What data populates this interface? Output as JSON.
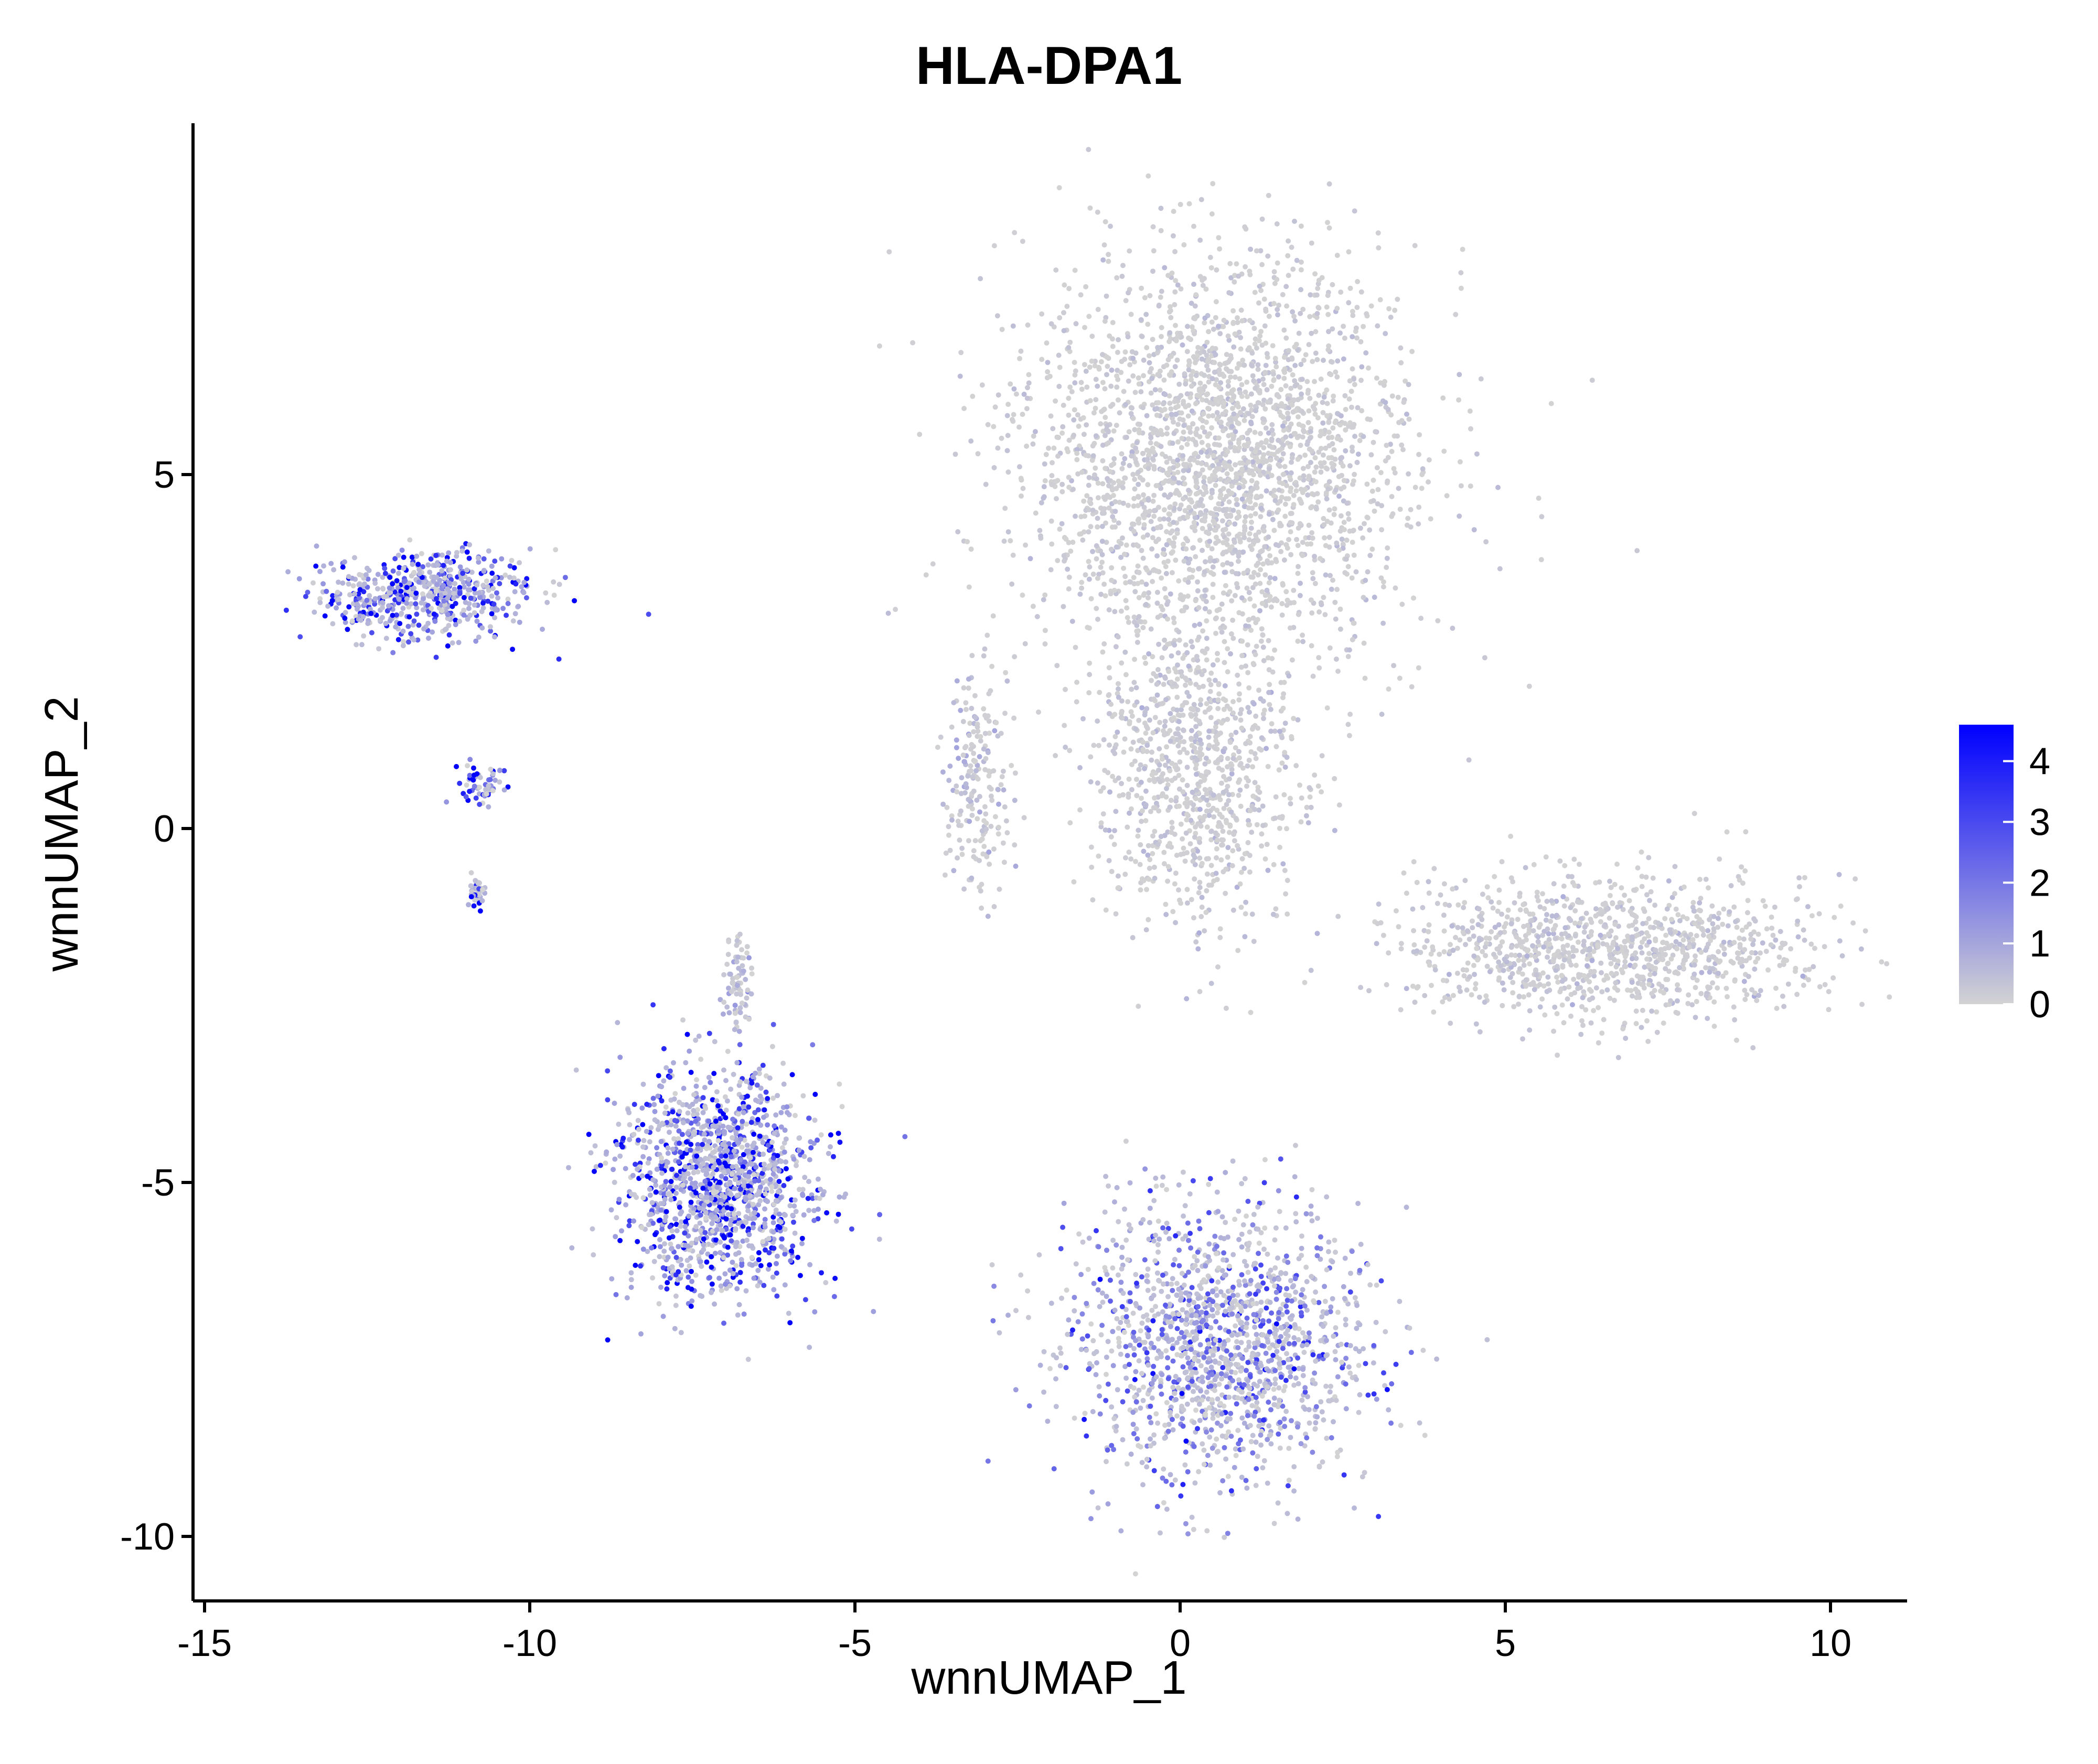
{
  "chart_data": {
    "type": "scatter",
    "title": "HLA-DPA1",
    "xlabel": "wnnUMAP_1",
    "ylabel": "wnnUMAP_2",
    "xlim": [
      -15.3,
      11.2
    ],
    "ylim": [
      -11,
      9.9
    ],
    "xticks": [
      -15,
      -10,
      -5,
      0,
      5,
      10
    ],
    "yticks": [
      5,
      0,
      -5,
      -10
    ],
    "xtick_labels": [
      "-15",
      "-10",
      "-5",
      "0",
      "5",
      "10"
    ],
    "ytick_labels": [
      "5",
      "0",
      "-5",
      "-10"
    ],
    "grid": false,
    "legend": {
      "placement": "right",
      "ticks": [
        4,
        3,
        2,
        1,
        0
      ],
      "tick_labels": [
        "4",
        "3",
        "2",
        "1",
        "0"
      ],
      "range": [
        0,
        4.6
      ]
    },
    "colors": {
      "low": "#d3d3d3",
      "high": "#0000ff"
    },
    "clusters": [
      {
        "label": "upper central large cluster",
        "center": [
          0.6,
          5.2
        ],
        "spread": [
          3.0,
          2.8
        ],
        "expression": 0.25
      },
      {
        "label": "central stem",
        "center": [
          0.2,
          0.8
        ],
        "spread": [
          1.6,
          2.2
        ],
        "expression": 0.3
      },
      {
        "label": "left arm of central cluster",
        "center": [
          -3.1,
          0.6
        ],
        "spread": [
          0.5,
          1.6
        ],
        "expression": 0.5
      },
      {
        "label": "right elongated arm",
        "center": [
          6.6,
          -1.7
        ],
        "spread": [
          3.0,
          1.0
        ],
        "expression": 0.3
      },
      {
        "label": "lower central cluster",
        "center": [
          0.6,
          -7.3
        ],
        "spread": [
          2.3,
          1.9
        ],
        "expression": 1.8
      },
      {
        "label": "lower left dense cluster",
        "center": [
          -7.1,
          -5.0
        ],
        "spread": [
          1.5,
          1.6
        ],
        "expression": 3.3
      },
      {
        "label": "lower left tail",
        "center": [
          -6.8,
          -2.2
        ],
        "spread": [
          0.25,
          0.6
        ],
        "expression": 0.6
      },
      {
        "label": "upper left cluster",
        "center": [
          -11.6,
          3.3
        ],
        "spread": [
          1.6,
          0.6
        ],
        "expression": 3.0
      },
      {
        "label": "small scattered cells",
        "center": [
          -10.7,
          0.6
        ],
        "spread": [
          0.35,
          0.3
        ],
        "expression": 3.6
      },
      {
        "label": "small bottom-left islet",
        "center": [
          -10.8,
          -0.9
        ],
        "spread": [
          0.12,
          0.2
        ],
        "expression": 3.0
      }
    ]
  }
}
